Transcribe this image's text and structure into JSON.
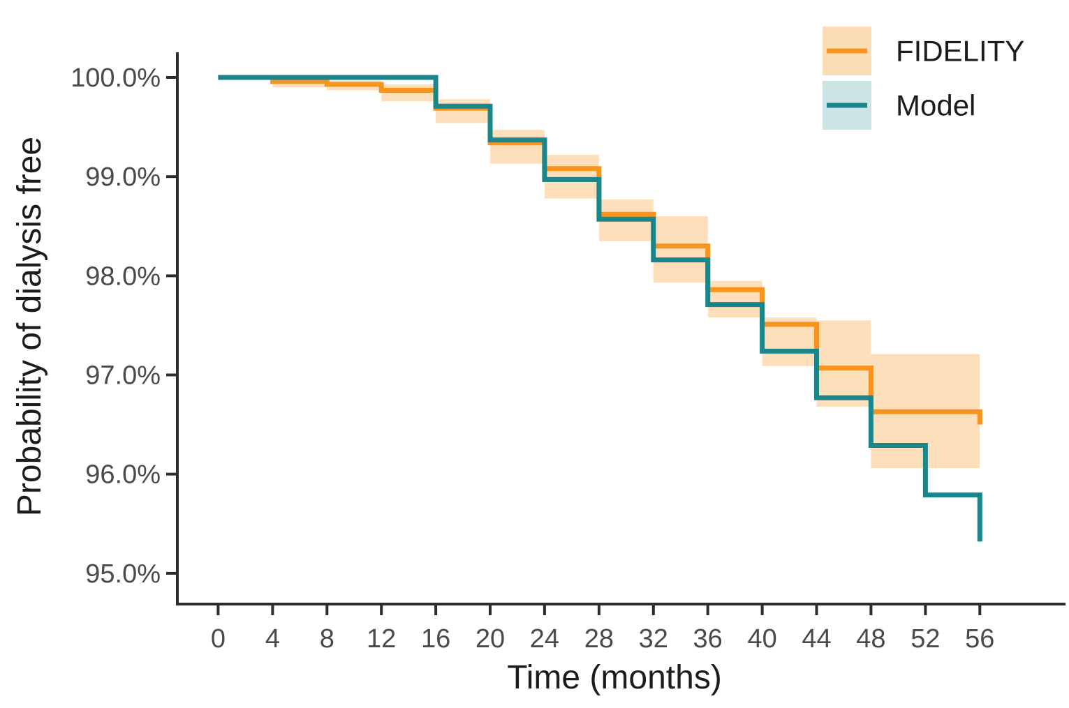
{
  "chart_data": {
    "type": "line",
    "variant": "kaplan-meier-step",
    "title": "",
    "xlabel": "Time (months)",
    "ylabel": "Probability of dialysis free",
    "grid": false,
    "xlim": [
      -3,
      62.3
    ],
    "ylim": [
      94.69,
      100.253
    ],
    "x_ticks": [
      {
        "value": 0,
        "label": "0"
      },
      {
        "value": 4,
        "label": "4"
      },
      {
        "value": 8,
        "label": "8"
      },
      {
        "value": 12,
        "label": "12"
      },
      {
        "value": 16,
        "label": "16"
      },
      {
        "value": 20,
        "label": "20"
      },
      {
        "value": 24,
        "label": "24"
      },
      {
        "value": 28,
        "label": "28"
      },
      {
        "value": 32,
        "label": "32"
      },
      {
        "value": 36,
        "label": "36"
      },
      {
        "value": 40,
        "label": "40"
      },
      {
        "value": 44,
        "label": "44"
      },
      {
        "value": 48,
        "label": "48"
      },
      {
        "value": 52,
        "label": "52"
      },
      {
        "value": 56,
        "label": "56"
      }
    ],
    "y_ticks": [
      {
        "value": 100,
        "label": "100.0%"
      },
      {
        "value": 99,
        "label": "99.0%"
      },
      {
        "value": 98,
        "label": "98.0%"
      },
      {
        "value": 97,
        "label": "97.0%"
      },
      {
        "value": 96,
        "label": "96.0%"
      },
      {
        "value": 95,
        "label": "95.0%"
      }
    ],
    "legend": {
      "position": "top-right-inside",
      "items": [
        {
          "label": "FIDELITY",
          "line_color": "#F7941E",
          "fill_color": "#FBDDB8"
        },
        {
          "label": "Model",
          "line_color": "#1A858B",
          "fill_color": "#CDE4E5"
        }
      ]
    },
    "series": [
      {
        "name": "FIDELITY",
        "color": "#F7941E",
        "step_points": [
          [
            0,
            100.0
          ],
          [
            4,
            99.96
          ],
          [
            8,
            99.93
          ],
          [
            12,
            99.87
          ],
          [
            16,
            99.69
          ],
          [
            20,
            99.34
          ],
          [
            24,
            99.08
          ],
          [
            28,
            98.62
          ],
          [
            32,
            98.3
          ],
          [
            36,
            97.86
          ],
          [
            40,
            97.51
          ],
          [
            44,
            97.07
          ],
          [
            48,
            96.63
          ],
          [
            56,
            96.5
          ]
        ]
      },
      {
        "name": "Model",
        "color": "#1A858B",
        "step_points": [
          [
            0,
            100.0
          ],
          [
            16,
            99.71
          ],
          [
            20,
            99.37
          ],
          [
            24,
            98.97
          ],
          [
            28,
            98.57
          ],
          [
            32,
            98.16
          ],
          [
            36,
            97.71
          ],
          [
            40,
            97.24
          ],
          [
            44,
            96.77
          ],
          [
            48,
            96.29
          ],
          [
            52,
            95.79
          ],
          [
            56,
            95.32
          ]
        ]
      }
    ],
    "confidence_band": {
      "series": "FIDELITY",
      "fill": "#F7941E",
      "opacity": 0.3,
      "segments": [
        {
          "from": 4,
          "to": 8,
          "lower": 99.9,
          "upper": 99.99
        },
        {
          "from": 8,
          "to": 12,
          "lower": 99.87,
          "upper": 99.97
        },
        {
          "from": 12,
          "to": 16,
          "lower": 99.76,
          "upper": 99.93
        },
        {
          "from": 16,
          "to": 20,
          "lower": 99.54,
          "upper": 99.78
        },
        {
          "from": 20,
          "to": 24,
          "lower": 99.13,
          "upper": 99.47
        },
        {
          "from": 24,
          "to": 28,
          "lower": 98.78,
          "upper": 99.22
        },
        {
          "from": 28,
          "to": 32,
          "lower": 98.35,
          "upper": 98.77
        },
        {
          "from": 32,
          "to": 36,
          "lower": 97.93,
          "upper": 98.6
        },
        {
          "from": 36,
          "to": 40,
          "lower": 97.58,
          "upper": 97.95
        },
        {
          "from": 40,
          "to": 44,
          "lower": 97.09,
          "upper": 97.58
        },
        {
          "from": 44,
          "to": 48,
          "lower": 96.68,
          "upper": 97.55
        },
        {
          "from": 48,
          "to": 56,
          "lower": 96.06,
          "upper": 97.21
        }
      ]
    },
    "axis_color": "#2d2d2d",
    "tick_label_color": "#4a4a4a",
    "title_color": "#1c1c1c"
  }
}
